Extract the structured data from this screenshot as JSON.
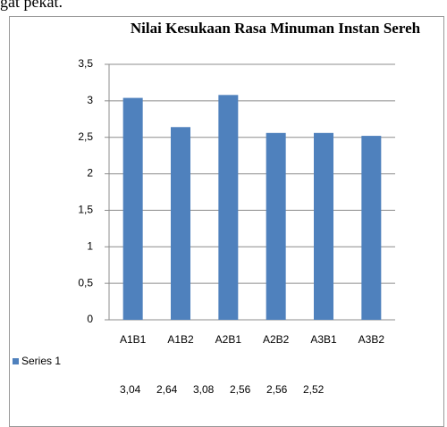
{
  "caption": "gat pekat.",
  "chart_data": {
    "type": "bar",
    "title": "Nilai Kesukaan Rasa Minuman Instan Sereh",
    "categories": [
      "A1B1",
      "A1B2",
      "A2B1",
      "A2B2",
      "A3B1",
      "A3B2"
    ],
    "series": [
      {
        "name": "Series 1",
        "color": "#4f81bd",
        "values": [
          3.04,
          2.64,
          3.08,
          2.56,
          2.56,
          2.52
        ],
        "value_labels": [
          "3,04",
          "2,64",
          "3,08",
          "2,56",
          "2,56",
          "2,52"
        ]
      }
    ],
    "ylim": [
      0,
      3.5
    ],
    "yticks": [
      0,
      {
        "value": 0.5,
        "label": "0,5"
      },
      1,
      {
        "value": 1.5,
        "label": "1,5"
      },
      2,
      {
        "value": 2.5,
        "label": "2,5"
      },
      3,
      {
        "value": 3.5,
        "label": "3,5"
      }
    ],
    "grid": true,
    "legend": "bottom-left"
  }
}
